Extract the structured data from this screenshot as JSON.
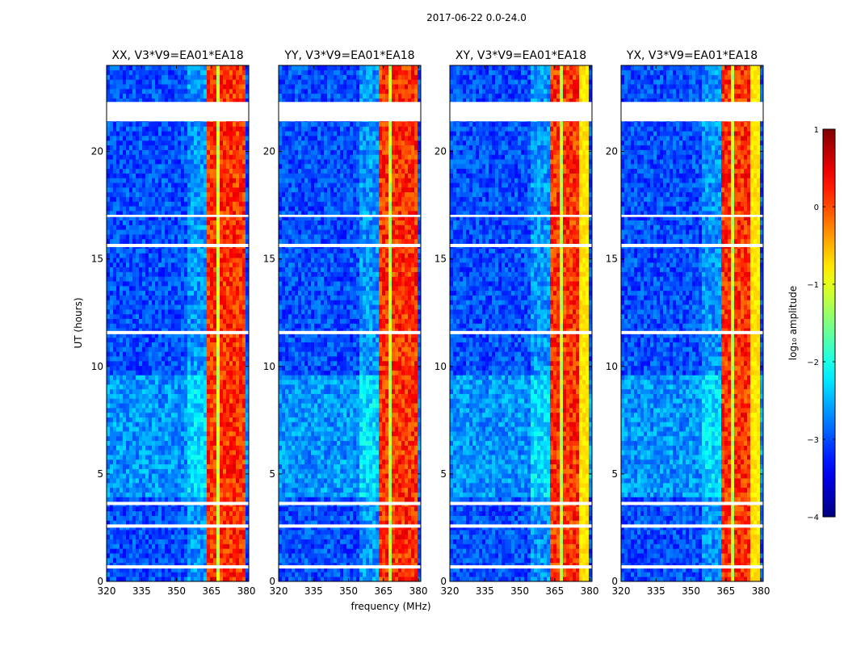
{
  "chart_data": {
    "type": "heatmap",
    "suptitle": "2017-06-22 0.0-24.0",
    "xlabel": "frequency (MHz)",
    "ylabel": "UT (hours)",
    "xlim": [
      320,
      381
    ],
    "ylim": [
      0,
      24
    ],
    "xticks": [
      320,
      335,
      350,
      365,
      380
    ],
    "yticks": [
      0,
      5,
      10,
      15,
      20
    ],
    "colormap": "jet",
    "colorbar": {
      "label": "log₁₀ amplitude",
      "range": [
        -4,
        1
      ],
      "ticks": [
        1,
        0,
        -1,
        -2,
        -3,
        -4
      ],
      "tick_labels": [
        "1",
        "0",
        "−1",
        "−2",
        "−3",
        "−4"
      ]
    },
    "panels": [
      {
        "title": "XX, V3*V9=EA01*EA18",
        "pol": "XX",
        "baseline": "V3*V9=EA01*EA18"
      },
      {
        "title": "YY, V3*V9=EA01*EA18",
        "pol": "YY",
        "baseline": "V3*V9=EA01*EA18"
      },
      {
        "title": "XY, V3*V9=EA01*EA18",
        "pol": "XY",
        "baseline": "V3*V9=EA01*EA18"
      },
      {
        "title": "YX, V3*V9=EA01*EA18",
        "pol": "YX",
        "baseline": "V3*V9=EA01*EA18"
      }
    ],
    "signal_band_mhz": [
      363.5,
      380
    ],
    "signal_channels_mhz": [
      [
        363.5,
        367.5
      ],
      [
        368.2,
        372.0
      ],
      [
        372.6,
        376.5
      ],
      [
        377.0,
        380.0
      ]
    ],
    "flagged_ut_hours": [
      [
        21.4,
        22.3
      ],
      [
        0.6,
        0.75
      ],
      [
        2.5,
        2.65
      ],
      [
        3.55,
        3.7
      ],
      [
        11.5,
        11.65
      ],
      [
        15.55,
        15.7
      ],
      [
        16.95,
        17.05
      ]
    ],
    "approx_levels": {
      "background": -3.0,
      "signal_band": -0.5,
      "signal_peak": 0.5
    }
  }
}
